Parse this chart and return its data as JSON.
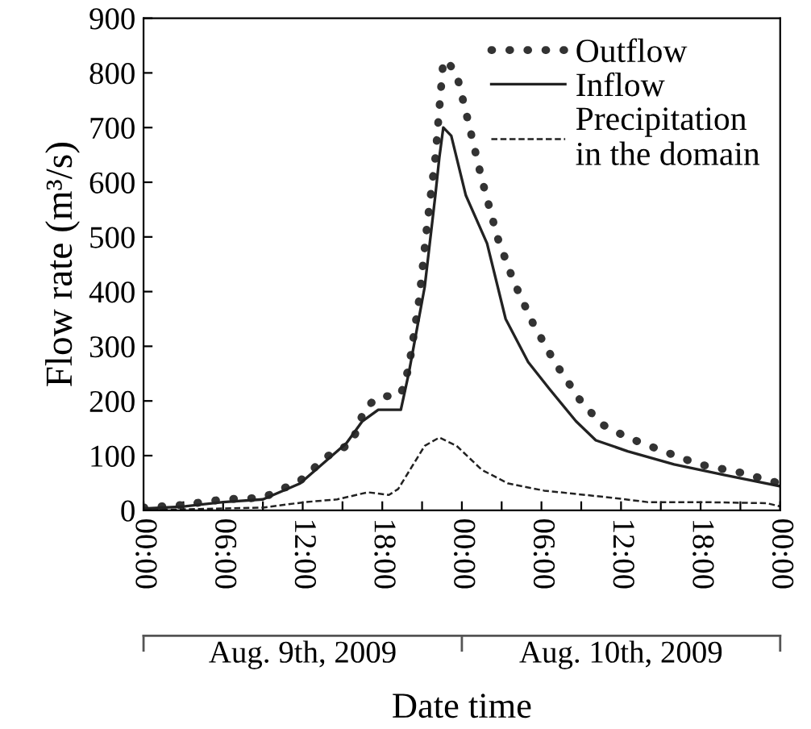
{
  "chart_data": {
    "type": "line",
    "xlabel": "Date time",
    "ylabel": "Flow rate (m³/s)",
    "xlim": [
      "2009-08-09T00:00",
      "2009-08-11T00:00"
    ],
    "ylim": [
      0,
      900
    ],
    "xticks": [
      {
        "value": "2009-08-09T00:00",
        "label": "00:00"
      },
      {
        "value": "2009-08-09T03:00",
        "label": null
      },
      {
        "value": "2009-08-09T06:00",
        "label": "06:00"
      },
      {
        "value": "2009-08-09T09:00",
        "label": null
      },
      {
        "value": "2009-08-09T12:00",
        "label": "12:00"
      },
      {
        "value": "2009-08-09T15:00",
        "label": null
      },
      {
        "value": "2009-08-09T18:00",
        "label": "18:00"
      },
      {
        "value": "2009-08-09T21:00",
        "label": null
      },
      {
        "value": "2009-08-10T00:00",
        "label": "00:00"
      },
      {
        "value": "2009-08-10T03:00",
        "label": null
      },
      {
        "value": "2009-08-10T06:00",
        "label": "06:00"
      },
      {
        "value": "2009-08-10T09:00",
        "label": null
      },
      {
        "value": "2009-08-10T12:00",
        "label": "12:00"
      },
      {
        "value": "2009-08-10T15:00",
        "label": null
      },
      {
        "value": "2009-08-10T18:00",
        "label": "18:00"
      },
      {
        "value": "2009-08-10T21:00",
        "label": null
      },
      {
        "value": "2009-08-11T00:00",
        "label": "00:00"
      }
    ],
    "yticks": [
      0,
      100,
      200,
      300,
      400,
      500,
      600,
      700,
      800,
      900
    ],
    "annotations": [
      "Aug. 9th, 2009",
      "Aug. 10th, 2009"
    ],
    "legend": "top right",
    "grid": false,
    "series": [
      {
        "name": "Outflow",
        "color": "#333333",
        "line_style": "dotted",
        "x": [
          "2009-08-09T00:00",
          "2009-08-09T03:00",
          "2009-08-09T06:00",
          "2009-08-09T09:00",
          "2009-08-09T11:48",
          "2009-08-09T13:48",
          "2009-08-09T15:42",
          "2009-08-09T16:42",
          "2009-08-09T17:42",
          "2009-08-09T18:54",
          "2009-08-09T19:24",
          "2009-08-09T20:00",
          "2009-08-09T20:48",
          "2009-08-09T21:24",
          "2009-08-09T22:00",
          "2009-08-09T22:36",
          "2009-08-09T23:00",
          "2009-08-09T23:36",
          "2009-08-10T00:18",
          "2009-08-10T01:30",
          "2009-08-10T02:42",
          "2009-08-10T03:54",
          "2009-08-10T05:24",
          "2009-08-10T07:00",
          "2009-08-10T08:54",
          "2009-08-10T10:30",
          "2009-08-10T12:30",
          "2009-08-10T15:12",
          "2009-08-10T17:54",
          "2009-08-10T21:00",
          "2009-08-11T00:00"
        ],
        "values": [
          5,
          10,
          20,
          23,
          54,
          98,
          123,
          187,
          207,
          210,
          212,
          261,
          389,
          527,
          645,
          823,
          818,
          798,
          729,
          606,
          498,
          419,
          340,
          271,
          202,
          158,
          133,
          108,
          84,
          69,
          49
        ]
      },
      {
        "name": "Inflow",
        "color": "#222222",
        "line_style": "solid",
        "x": [
          "2009-08-09T00:00",
          "2009-08-09T03:00",
          "2009-08-09T06:00",
          "2009-08-09T09:00",
          "2009-08-09T11:48",
          "2009-08-09T15:18",
          "2009-08-09T16:30",
          "2009-08-09T17:42",
          "2009-08-09T19:24",
          "2009-08-09T20:00",
          "2009-08-09T21:12",
          "2009-08-09T22:00",
          "2009-08-09T22:18",
          "2009-08-09T22:36",
          "2009-08-09T23:12",
          "2009-08-10T00:18",
          "2009-08-10T01:54",
          "2009-08-10T03:18",
          "2009-08-10T05:00",
          "2009-08-10T06:36",
          "2009-08-10T08:36",
          "2009-08-10T10:06",
          "2009-08-10T12:30",
          "2009-08-10T16:00",
          "2009-08-10T19:54",
          "2009-08-11T00:00"
        ],
        "values": [
          3,
          7,
          15,
          20,
          49,
          123,
          163,
          184,
          184,
          251,
          409,
          576,
          645,
          700,
          685,
          576,
          488,
          350,
          271,
          222,
          163,
          128,
          108,
          84,
          64,
          44
        ]
      },
      {
        "name": "Precipitation\nin the domain",
        "color": "#222222",
        "line_style": "dashed",
        "x": [
          "2009-08-09T00:00",
          "2009-08-09T09:00",
          "2009-08-09T12:12",
          "2009-08-09T14:36",
          "2009-08-09T16:54",
          "2009-08-09T18:30",
          "2009-08-09T19:12",
          "2009-08-09T21:12",
          "2009-08-09T22:18",
          "2009-08-09T23:36",
          "2009-08-10T01:30",
          "2009-08-10T03:30",
          "2009-08-10T06:12",
          "2009-08-10T11:18",
          "2009-08-10T14:00",
          "2009-08-10T18:00",
          "2009-08-10T23:00",
          "2009-08-11T00:00"
        ],
        "values": [
          0,
          5,
          15,
          20,
          33,
          28,
          39,
          118,
          133,
          118,
          74,
          49,
          36,
          23,
          15,
          15,
          13,
          7
        ]
      }
    ]
  }
}
